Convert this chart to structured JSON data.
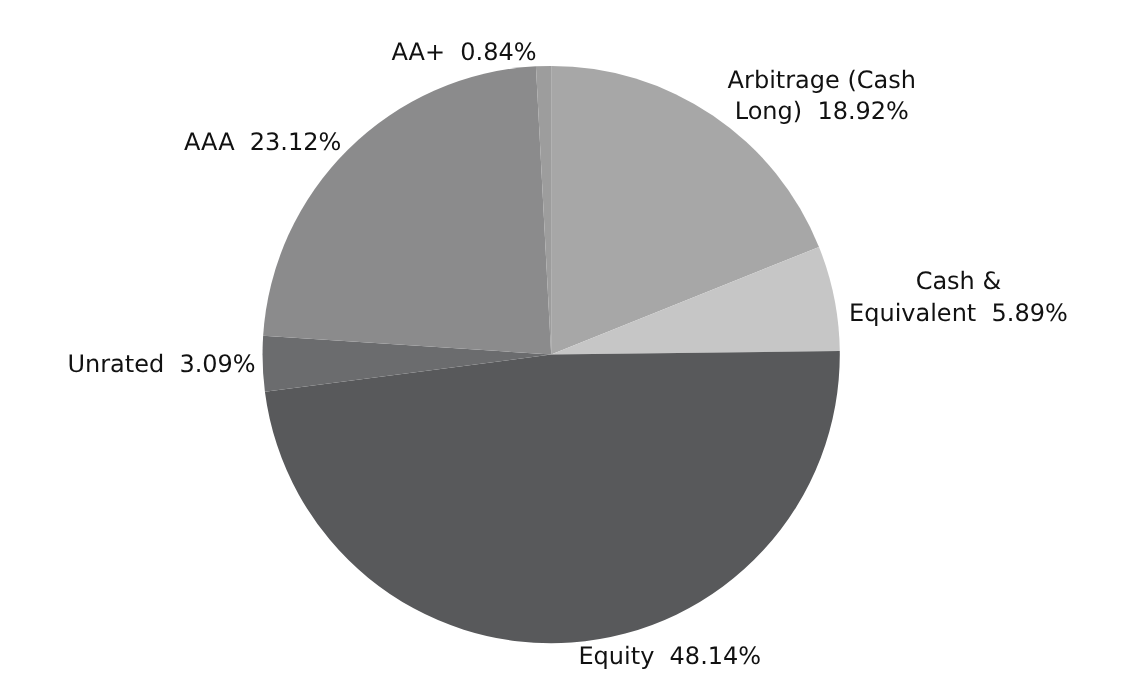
{
  "chart_data": {
    "type": "pie",
    "categories": [
      "Arbitrage (Cash Long)",
      "Cash & Equivalent",
      "Equity",
      "Unrated",
      "AAA",
      "AA+"
    ],
    "values": [
      18.92,
      5.89,
      48.14,
      3.09,
      23.12,
      0.84
    ],
    "colors": [
      "#a7a7a7",
      "#c6c6c6",
      "#58595b",
      "#6b6c6e",
      "#8b8b8c",
      "#9d9d9d"
    ],
    "value_labels": [
      "18.92%",
      "5.89%",
      "48.14%",
      "3.09%",
      "23.12%",
      "0.84%"
    ],
    "legend": false
  }
}
